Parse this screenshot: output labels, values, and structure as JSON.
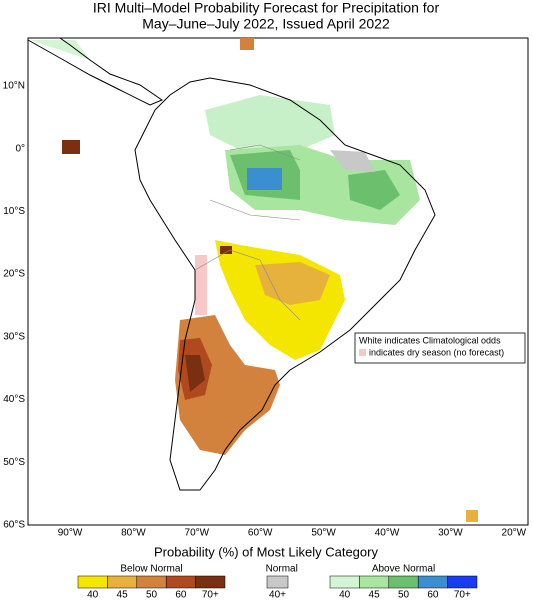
{
  "title": {
    "line1": "IRI Multi–Model Probability Forecast for Precipitation for",
    "line2": "May–June–July 2022, Issued April 2022"
  },
  "map": {
    "lat_labels": [
      "10°N",
      "0°",
      "10°S",
      "20°S",
      "30°S",
      "40°S",
      "50°S",
      "60°S"
    ],
    "lon_labels": [
      "90°W",
      "80°W",
      "70°W",
      "60°W",
      "50°W",
      "40°W",
      "30°W",
      "20°W"
    ]
  },
  "note": {
    "line1": "White indicates Climatological odds",
    "line2": "indicates dry season (no forecast)"
  },
  "legend": {
    "heading": "Probability (%) of Most Likely Category",
    "below": {
      "label": "Below Normal",
      "ticks": [
        "40",
        "45",
        "50",
        "60",
        "70+"
      ]
    },
    "normal": {
      "label": "Normal",
      "ticks": [
        "40+"
      ]
    },
    "above": {
      "label": "Above Normal",
      "ticks": [
        "40",
        "45",
        "50",
        "60",
        "70+"
      ]
    }
  }
}
